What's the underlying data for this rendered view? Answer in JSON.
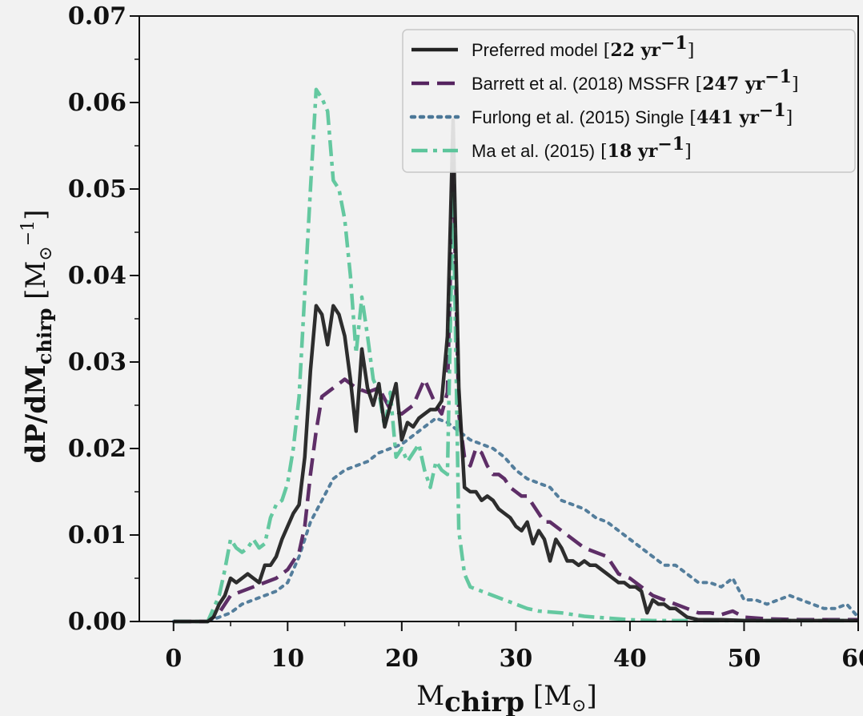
{
  "chart_data": {
    "type": "line",
    "xlabel": "M_chirp [M_⊙]",
    "ylabel": "dP/dM_chirp [M_⊙^-1]",
    "xlim": [
      -3,
      60
    ],
    "ylim": [
      0,
      0.07
    ],
    "xticks": [
      "0",
      "10",
      "20",
      "30",
      "40",
      "50",
      "60"
    ],
    "yticks": [
      "0.00",
      "0.01",
      "0.02",
      "0.03",
      "0.04",
      "0.05",
      "0.06",
      "0.07"
    ],
    "legend_position": "top-right",
    "grid": false,
    "series": [
      {
        "name": "Preferred model",
        "rate_text": "22 yr",
        "color": "#222222",
        "style": "solid",
        "points": [
          [
            0,
            0
          ],
          [
            3,
            0
          ],
          [
            3.5,
            0.0005
          ],
          [
            4,
            0.002
          ],
          [
            4.5,
            0.003
          ],
          [
            5,
            0.005
          ],
          [
            5.5,
            0.0045
          ],
          [
            6,
            0.005
          ],
          [
            6.5,
            0.0055
          ],
          [
            7,
            0.005
          ],
          [
            7.5,
            0.0045
          ],
          [
            8,
            0.0065
          ],
          [
            8.5,
            0.0065
          ],
          [
            9,
            0.0075
          ],
          [
            9.5,
            0.0095
          ],
          [
            10,
            0.011
          ],
          [
            10.5,
            0.0125
          ],
          [
            11,
            0.0135
          ],
          [
            11.5,
            0.019
          ],
          [
            12,
            0.029
          ],
          [
            12.5,
            0.0365
          ],
          [
            13,
            0.0355
          ],
          [
            13.5,
            0.032
          ],
          [
            14,
            0.0365
          ],
          [
            14.5,
            0.0355
          ],
          [
            15,
            0.033
          ],
          [
            15.5,
            0.028
          ],
          [
            16,
            0.022
          ],
          [
            16.5,
            0.0315
          ],
          [
            17,
            0.027
          ],
          [
            17.5,
            0.025
          ],
          [
            18,
            0.0275
          ],
          [
            18.5,
            0.0225
          ],
          [
            19,
            0.025
          ],
          [
            19.5,
            0.0275
          ],
          [
            20,
            0.021
          ],
          [
            20.5,
            0.023
          ],
          [
            21,
            0.0225
          ],
          [
            21.5,
            0.0235
          ],
          [
            22,
            0.024
          ],
          [
            22.5,
            0.0245
          ],
          [
            23,
            0.0245
          ],
          [
            23.5,
            0.0255
          ],
          [
            24,
            0.033
          ],
          [
            24.5,
            0.058
          ],
          [
            25,
            0.027
          ],
          [
            25.5,
            0.0155
          ],
          [
            26,
            0.015
          ],
          [
            26.5,
            0.015
          ],
          [
            27,
            0.014
          ],
          [
            27.5,
            0.0145
          ],
          [
            28,
            0.014
          ],
          [
            28.5,
            0.013
          ],
          [
            29,
            0.0125
          ],
          [
            29.5,
            0.012
          ],
          [
            30,
            0.011
          ],
          [
            30.5,
            0.0105
          ],
          [
            31,
            0.0115
          ],
          [
            31.5,
            0.009
          ],
          [
            32,
            0.0105
          ],
          [
            32.5,
            0.0095
          ],
          [
            33,
            0.007
          ],
          [
            33.5,
            0.0095
          ],
          [
            34,
            0.0085
          ],
          [
            34.5,
            0.007
          ],
          [
            35,
            0.007
          ],
          [
            35.5,
            0.0065
          ],
          [
            36,
            0.007
          ],
          [
            36.5,
            0.0065
          ],
          [
            37,
            0.0065
          ],
          [
            37.5,
            0.006
          ],
          [
            38,
            0.0055
          ],
          [
            38.5,
            0.005
          ],
          [
            39,
            0.0045
          ],
          [
            39.5,
            0.0045
          ],
          [
            40,
            0.004
          ],
          [
            40.5,
            0.004
          ],
          [
            41,
            0.0035
          ],
          [
            41.5,
            0.001
          ],
          [
            42,
            0.0025
          ],
          [
            42.5,
            0.002
          ],
          [
            43,
            0.002
          ],
          [
            43.5,
            0.0015
          ],
          [
            44,
            0.0015
          ],
          [
            45,
            0.0005
          ],
          [
            46,
            0.0002
          ],
          [
            48,
            0.0002
          ],
          [
            50,
            0.0001
          ],
          [
            55,
            0.0001
          ],
          [
            60,
            0.0001
          ]
        ]
      },
      {
        "name": "Barrett et al. (2018) MSSFR",
        "rate_text": "247 yr",
        "color": "#55235f",
        "style": "dashed",
        "points": [
          [
            0,
            0
          ],
          [
            3,
            0
          ],
          [
            4,
            0.001
          ],
          [
            5,
            0.003
          ],
          [
            6,
            0.0035
          ],
          [
            7,
            0.004
          ],
          [
            8,
            0.0045
          ],
          [
            9,
            0.005
          ],
          [
            10,
            0.006
          ],
          [
            11,
            0.008
          ],
          [
            11.5,
            0.011
          ],
          [
            12,
            0.017
          ],
          [
            12.5,
            0.022
          ],
          [
            13,
            0.026
          ],
          [
            14,
            0.027
          ],
          [
            15,
            0.028
          ],
          [
            16,
            0.027
          ],
          [
            17,
            0.0265
          ],
          [
            18,
            0.027
          ],
          [
            19,
            0.0245
          ],
          [
            20,
            0.024
          ],
          [
            21,
            0.025
          ],
          [
            22,
            0.028
          ],
          [
            22.5,
            0.0265
          ],
          [
            23,
            0.025
          ],
          [
            23.5,
            0.024
          ],
          [
            24,
            0.0265
          ],
          [
            24.5,
            0.053
          ],
          [
            25,
            0.024
          ],
          [
            25.5,
            0.019
          ],
          [
            26,
            0.018
          ],
          [
            26.5,
            0.02
          ],
          [
            27,
            0.0195
          ],
          [
            27.5,
            0.018
          ],
          [
            28,
            0.017
          ],
          [
            28.5,
            0.017
          ],
          [
            29,
            0.0165
          ],
          [
            29.5,
            0.0155
          ],
          [
            30,
            0.015
          ],
          [
            30.5,
            0.0145
          ],
          [
            31,
            0.0145
          ],
          [
            31.5,
            0.0135
          ],
          [
            32,
            0.0125
          ],
          [
            32.5,
            0.0115
          ],
          [
            33,
            0.0115
          ],
          [
            34,
            0.0105
          ],
          [
            35,
            0.0095
          ],
          [
            36,
            0.0085
          ],
          [
            37,
            0.008
          ],
          [
            38,
            0.0075
          ],
          [
            39,
            0.0055
          ],
          [
            40,
            0.005
          ],
          [
            41,
            0.004
          ],
          [
            42,
            0.003
          ],
          [
            43,
            0.0025
          ],
          [
            44,
            0.002
          ],
          [
            45,
            0.0015
          ],
          [
            46,
            0.001
          ],
          [
            47,
            0.001
          ],
          [
            48,
            0.0008
          ],
          [
            49,
            0.0012
          ],
          [
            50,
            0.0005
          ],
          [
            52,
            0.0003
          ],
          [
            55,
            0.0002
          ],
          [
            60,
            0.0002
          ]
        ]
      },
      {
        "name": "Furlong et al. (2015) Single",
        "rate_text": "441 yr",
        "color": "#4b7797",
        "style": "dotted",
        "points": [
          [
            0,
            0
          ],
          [
            3,
            0
          ],
          [
            4,
            0.0005
          ],
          [
            5,
            0.001
          ],
          [
            6,
            0.002
          ],
          [
            7,
            0.0025
          ],
          [
            8,
            0.003
          ],
          [
            9,
            0.0035
          ],
          [
            10,
            0.0045
          ],
          [
            11,
            0.0075
          ],
          [
            12,
            0.0115
          ],
          [
            13,
            0.014
          ],
          [
            14,
            0.0165
          ],
          [
            15,
            0.0175
          ],
          [
            16,
            0.018
          ],
          [
            17,
            0.0185
          ],
          [
            18,
            0.0195
          ],
          [
            19,
            0.02
          ],
          [
            20,
            0.0205
          ],
          [
            21,
            0.0215
          ],
          [
            22,
            0.0225
          ],
          [
            23,
            0.0235
          ],
          [
            24,
            0.023
          ],
          [
            25,
            0.022
          ],
          [
            26,
            0.021
          ],
          [
            27,
            0.0205
          ],
          [
            28,
            0.02
          ],
          [
            29,
            0.019
          ],
          [
            30,
            0.0175
          ],
          [
            31,
            0.0165
          ],
          [
            32,
            0.016
          ],
          [
            33,
            0.0155
          ],
          [
            34,
            0.014
          ],
          [
            35,
            0.0135
          ],
          [
            36,
            0.013
          ],
          [
            37,
            0.012
          ],
          [
            38,
            0.0115
          ],
          [
            39,
            0.0105
          ],
          [
            40,
            0.0095
          ],
          [
            41,
            0.0085
          ],
          [
            42,
            0.0075
          ],
          [
            43,
            0.0065
          ],
          [
            44,
            0.0065
          ],
          [
            45,
            0.0055
          ],
          [
            46,
            0.0045
          ],
          [
            47,
            0.0045
          ],
          [
            48,
            0.004
          ],
          [
            49,
            0.005
          ],
          [
            50,
            0.0025
          ],
          [
            51,
            0.0025
          ],
          [
            52,
            0.002
          ],
          [
            53,
            0.0025
          ],
          [
            54,
            0.003
          ],
          [
            55,
            0.0025
          ],
          [
            56,
            0.002
          ],
          [
            57,
            0.0015
          ],
          [
            58,
            0.0015
          ],
          [
            59,
            0.002
          ],
          [
            60,
            0.0005
          ]
        ]
      },
      {
        "name": "Ma et al. (2015)",
        "rate_text": "18 yr",
        "color": "#5cc59b",
        "style": "dashdot",
        "points": [
          [
            0,
            0
          ],
          [
            3,
            0
          ],
          [
            4,
            0.003
          ],
          [
            4.5,
            0.006
          ],
          [
            5,
            0.0095
          ],
          [
            5.5,
            0.0085
          ],
          [
            6,
            0.008
          ],
          [
            6.5,
            0.0085
          ],
          [
            7,
            0.0095
          ],
          [
            7.5,
            0.0085
          ],
          [
            8,
            0.009
          ],
          [
            8.5,
            0.012
          ],
          [
            9,
            0.0135
          ],
          [
            9.5,
            0.014
          ],
          [
            10,
            0.016
          ],
          [
            10.5,
            0.02
          ],
          [
            11,
            0.026
          ],
          [
            11.5,
            0.038
          ],
          [
            12,
            0.05
          ],
          [
            12.5,
            0.0615
          ],
          [
            13,
            0.0605
          ],
          [
            13.5,
            0.059
          ],
          [
            14,
            0.051
          ],
          [
            14.5,
            0.05
          ],
          [
            15,
            0.0465
          ],
          [
            15.5,
            0.04
          ],
          [
            16,
            0.031
          ],
          [
            16.5,
            0.0375
          ],
          [
            17,
            0.033
          ],
          [
            17.5,
            0.028
          ],
          [
            18,
            0.0265
          ],
          [
            18.5,
            0.0225
          ],
          [
            19,
            0.0265
          ],
          [
            19.5,
            0.019
          ],
          [
            20,
            0.02
          ],
          [
            20.5,
            0.0185
          ],
          [
            21,
            0.0195
          ],
          [
            21.5,
            0.0205
          ],
          [
            22,
            0.0175
          ],
          [
            22.5,
            0.0155
          ],
          [
            23,
            0.0185
          ],
          [
            23.5,
            0.0175
          ],
          [
            24,
            0.017
          ],
          [
            24.5,
            0.05
          ],
          [
            25,
            0.0105
          ],
          [
            25.5,
            0.0055
          ],
          [
            26,
            0.004
          ],
          [
            27,
            0.0035
          ],
          [
            28,
            0.003
          ],
          [
            29,
            0.0025
          ],
          [
            30,
            0.002
          ],
          [
            31,
            0.0015
          ],
          [
            32,
            0.0012
          ],
          [
            34,
            0.001
          ],
          [
            36,
            0.0006
          ],
          [
            38,
            0.0004
          ],
          [
            40,
            0.0002
          ],
          [
            42,
            0.0001
          ],
          [
            45,
            0.0001
          ],
          [
            50,
            0.0001
          ],
          [
            60,
            0.0001
          ]
        ]
      }
    ]
  }
}
